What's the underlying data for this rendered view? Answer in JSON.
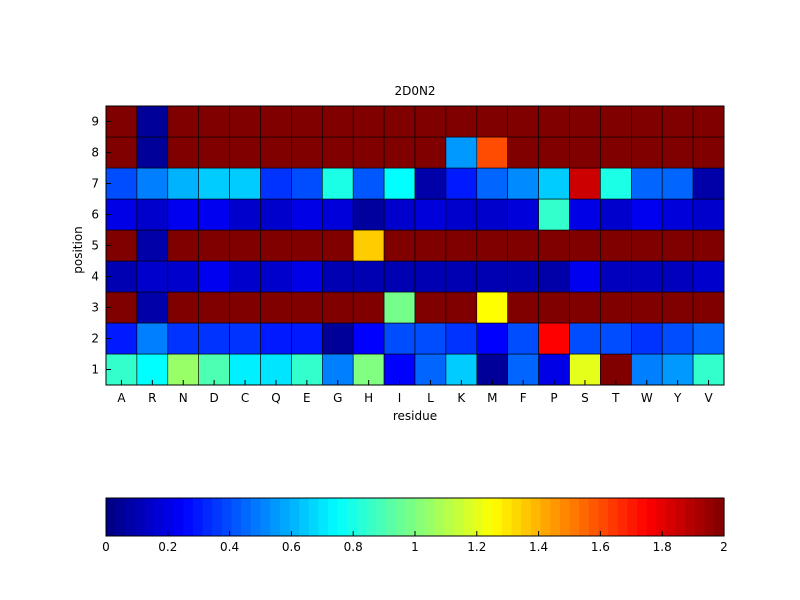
{
  "chart_data": {
    "type": "heatmap",
    "title": "2D0N2",
    "xlabel": "residue",
    "ylabel": "position",
    "x": [
      "A",
      "R",
      "N",
      "D",
      "C",
      "Q",
      "E",
      "G",
      "H",
      "I",
      "L",
      "K",
      "M",
      "F",
      "P",
      "S",
      "T",
      "W",
      "Y",
      "V"
    ],
    "y": [
      1,
      2,
      3,
      4,
      5,
      6,
      7,
      8,
      9
    ],
    "zlim": [
      0,
      2
    ],
    "colormap": "jet",
    "colorbar": {
      "placement": "bottom",
      "ticks": [
        0,
        0.2,
        0.4,
        0.6,
        0.8,
        1,
        1.2,
        1.4,
        1.6,
        1.8,
        2
      ],
      "tick_labels": [
        "0",
        "0.2",
        "0.4",
        "0.6",
        "0.8",
        "1",
        "1.2",
        "1.4",
        "1.6",
        "1.8",
        "2"
      ]
    },
    "values": [
      [
        0.85,
        0.75,
        1.05,
        0.9,
        0.72,
        0.7,
        0.85,
        0.5,
        1.0,
        0.25,
        0.45,
        0.65,
        0.05,
        0.45,
        0.2,
        1.2,
        2.0,
        0.5,
        0.55,
        0.85
      ],
      [
        0.3,
        0.5,
        0.35,
        0.35,
        0.35,
        0.3,
        0.3,
        0.05,
        0.25,
        0.4,
        0.4,
        0.35,
        0.25,
        0.4,
        1.75,
        0.4,
        0.4,
        0.35,
        0.4,
        0.45
      ],
      [
        2.0,
        0.08,
        2.0,
        2.0,
        2.0,
        2.0,
        2.0,
        2.0,
        2.0,
        0.98,
        2.0,
        2.0,
        1.25,
        2.0,
        2.0,
        2.0,
        2.0,
        2.0,
        2.0,
        2.0
      ],
      [
        0.1,
        0.15,
        0.15,
        0.22,
        0.15,
        0.15,
        0.2,
        0.1,
        0.1,
        0.1,
        0.1,
        0.1,
        0.1,
        0.1,
        0.08,
        0.22,
        0.12,
        0.12,
        0.12,
        0.15
      ],
      [
        2.0,
        0.08,
        2.0,
        2.0,
        2.0,
        2.0,
        2.0,
        2.0,
        1.35,
        2.0,
        2.0,
        2.0,
        2.0,
        2.0,
        2.0,
        2.0,
        2.0,
        2.0,
        2.0,
        2.0
      ],
      [
        0.2,
        0.15,
        0.22,
        0.22,
        0.15,
        0.15,
        0.2,
        0.18,
        0.06,
        0.15,
        0.18,
        0.15,
        0.15,
        0.18,
        0.85,
        0.2,
        0.15,
        0.22,
        0.18,
        0.15
      ],
      [
        0.4,
        0.5,
        0.6,
        0.65,
        0.65,
        0.35,
        0.4,
        0.8,
        0.42,
        0.75,
        0.08,
        0.3,
        0.45,
        0.52,
        0.65,
        1.85,
        0.8,
        0.45,
        0.45,
        0.08
      ],
      [
        2.0,
        0.05,
        2.0,
        2.0,
        2.0,
        2.0,
        2.0,
        2.0,
        2.0,
        2.0,
        2.0,
        0.55,
        1.6,
        2.0,
        2.0,
        2.0,
        2.0,
        2.0,
        2.0,
        2.0
      ],
      [
        2.0,
        0.05,
        2.0,
        2.0,
        2.0,
        2.0,
        2.0,
        2.0,
        2.0,
        2.0,
        2.0,
        2.0,
        2.0,
        2.0,
        2.0,
        2.0,
        2.0,
        2.0,
        2.0,
        2.0
      ]
    ]
  }
}
